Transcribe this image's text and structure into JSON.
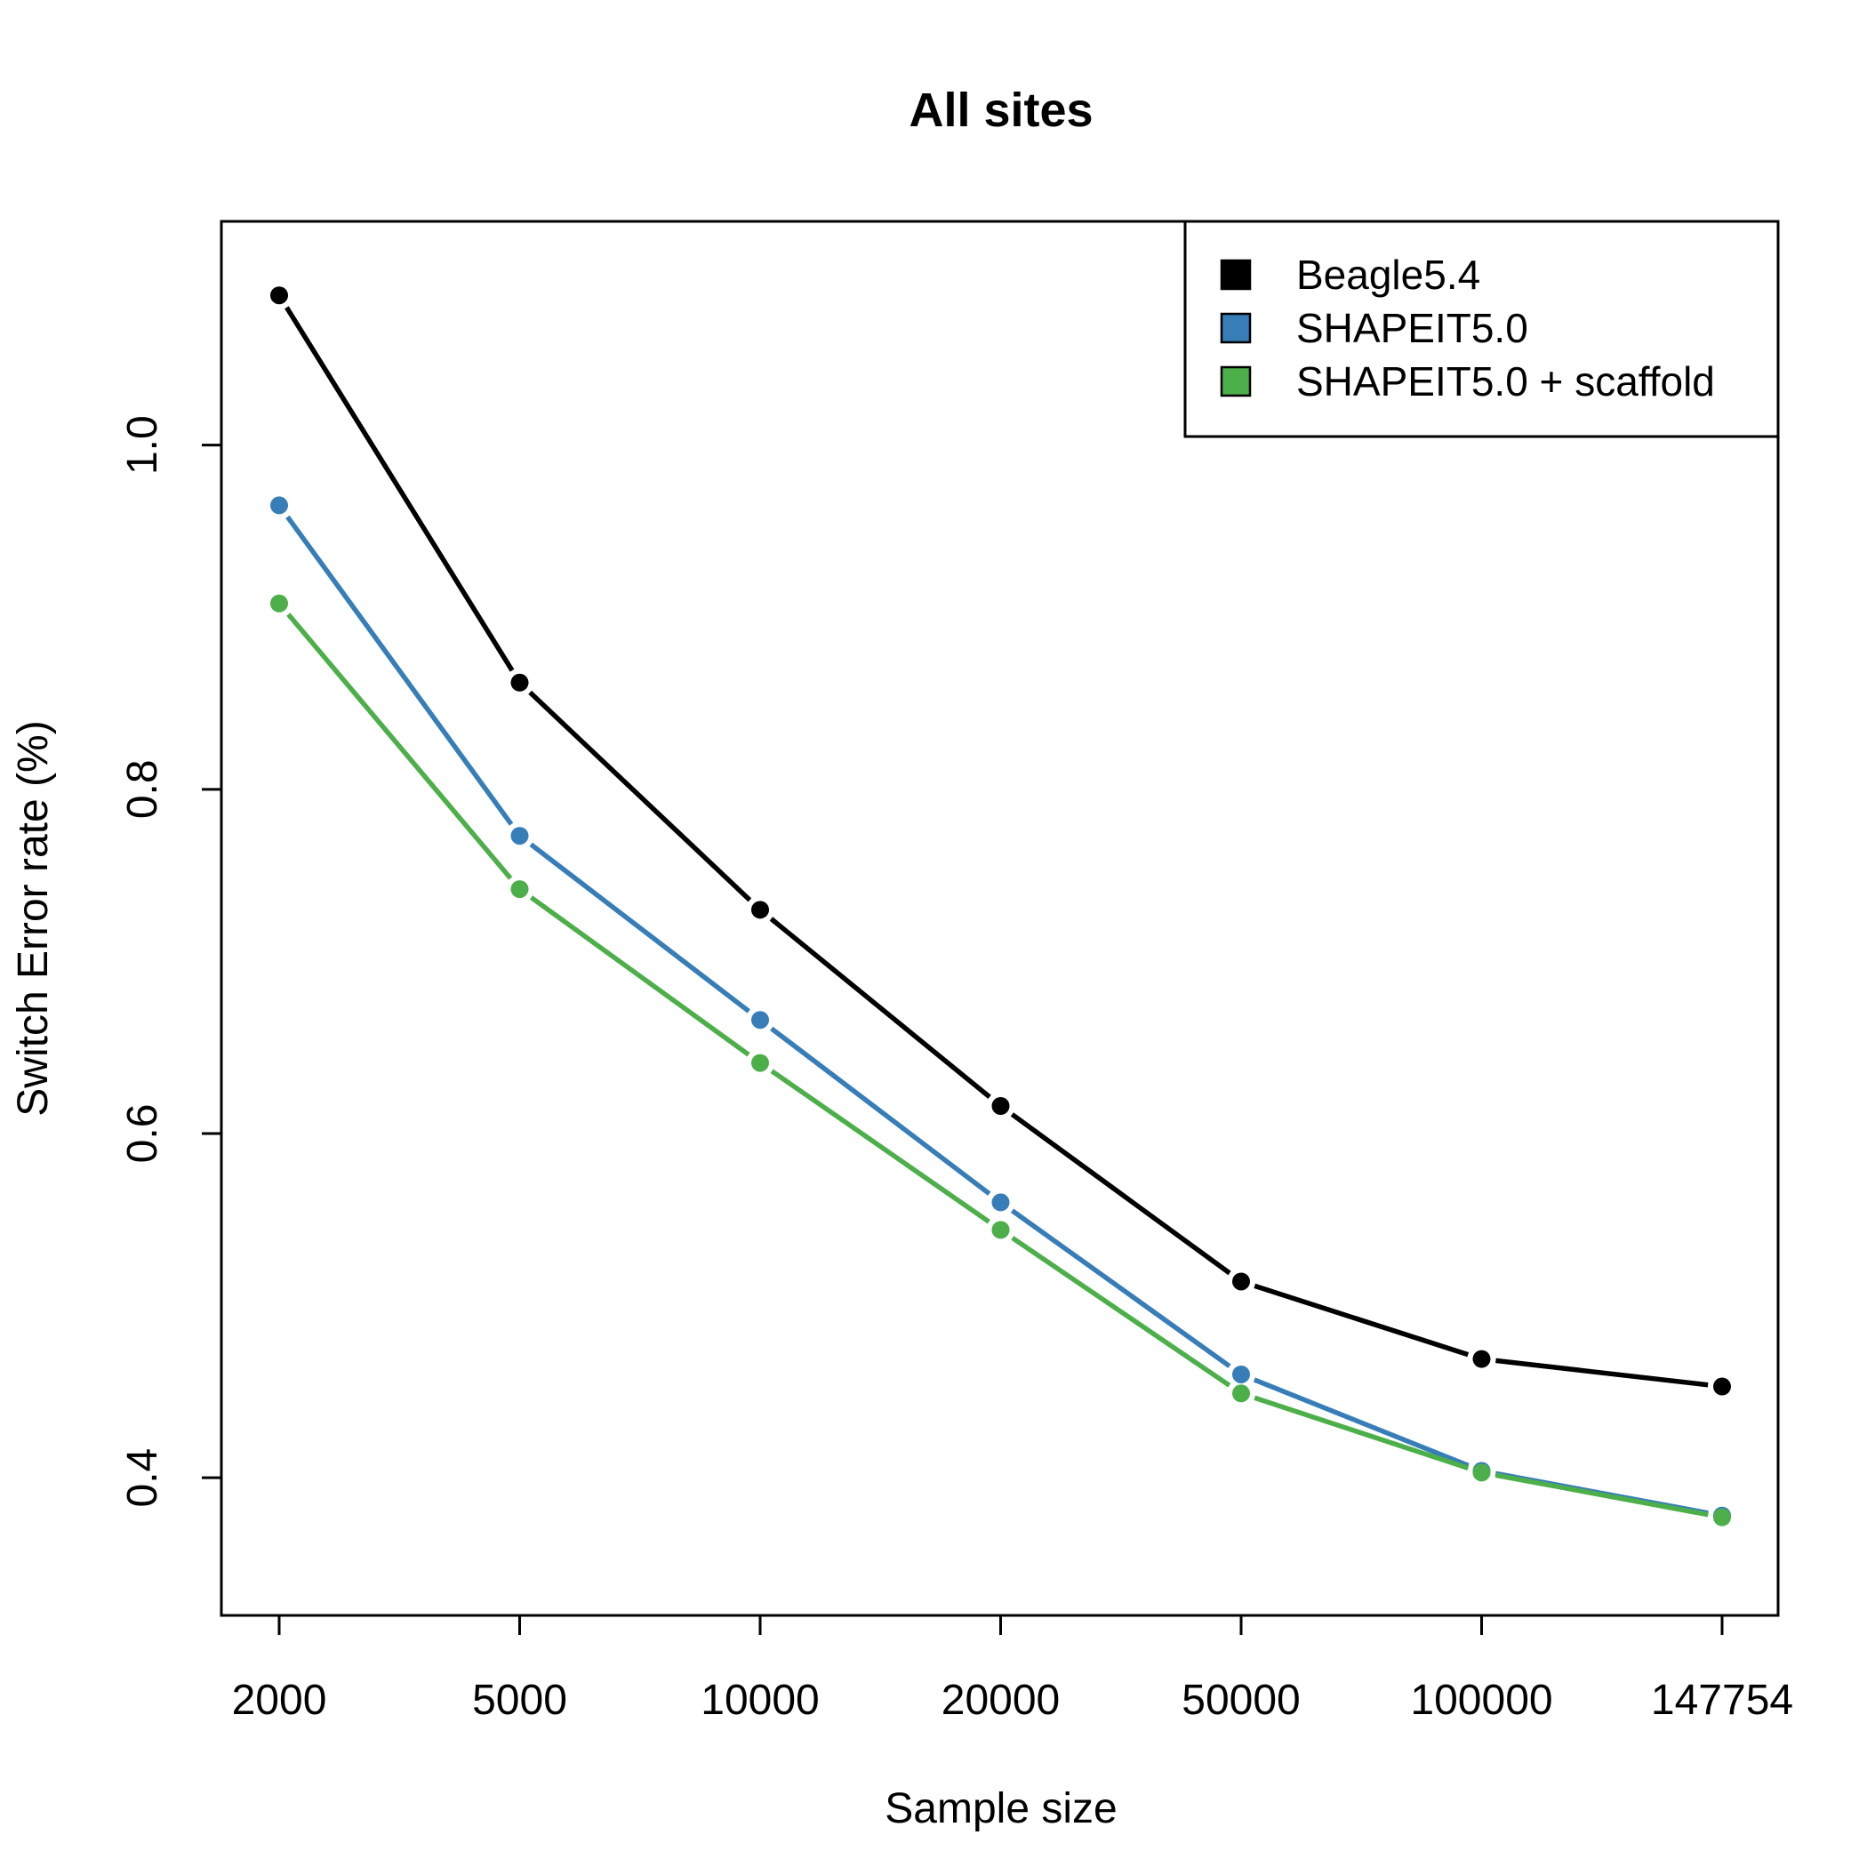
{
  "chart_data": {
    "type": "line",
    "title": "All sites",
    "xlabel": "Sample size",
    "ylabel": "Switch Error rate (%)",
    "categories": [
      "2000",
      "5000",
      "10000",
      "20000",
      "50000",
      "100000",
      "147754"
    ],
    "ylim": [
      0.32,
      1.13
    ],
    "yticks": [
      0.4,
      0.6,
      0.8,
      1.0
    ],
    "ytick_labels": [
      "0.4",
      "0.6",
      "0.8",
      "1.0"
    ],
    "grid": false,
    "legend_position": "top-right",
    "series": [
      {
        "name": "Beagle5.4",
        "color": "#000000",
        "values": [
          1.087,
          0.862,
          0.73,
          0.616,
          0.514,
          0.469,
          0.453
        ]
      },
      {
        "name": "SHAPEIT5.0",
        "color": "#377EB8",
        "values": [
          0.965,
          0.773,
          0.666,
          0.56,
          0.46,
          0.404,
          0.378
        ]
      },
      {
        "name": "SHAPEIT5.0 + scaffold",
        "color": "#4DAF4A",
        "values": [
          0.908,
          0.742,
          0.641,
          0.544,
          0.449,
          0.403,
          0.377
        ]
      }
    ]
  }
}
